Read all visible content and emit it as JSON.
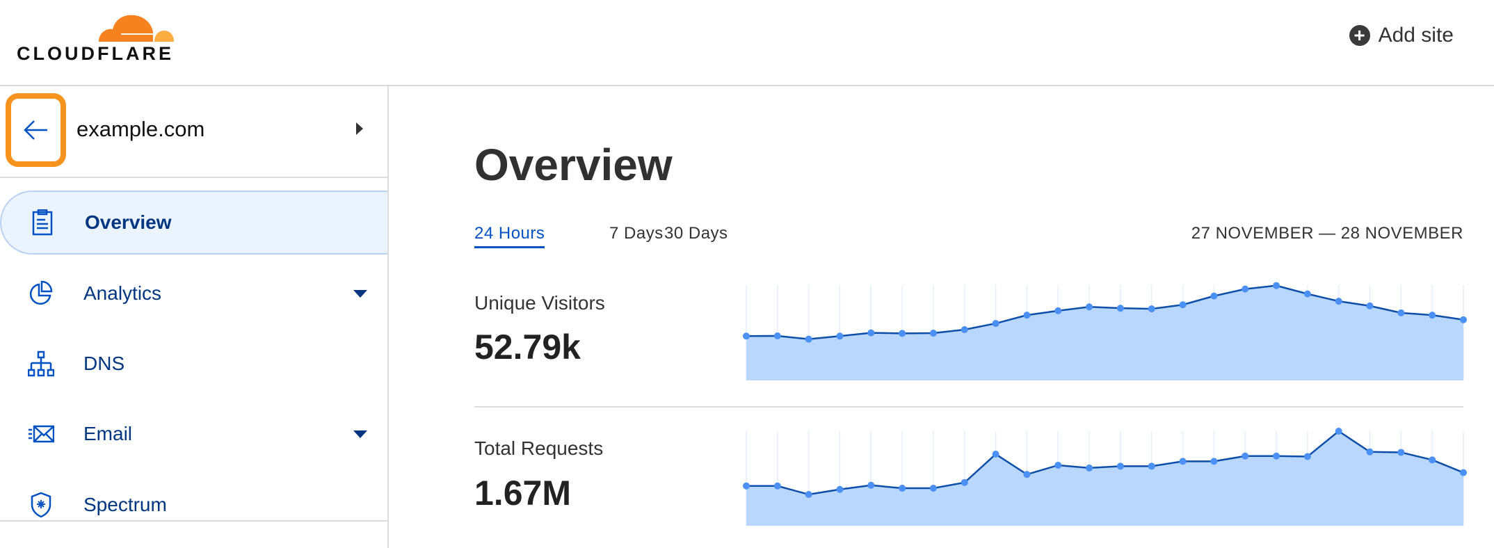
{
  "header": {
    "logo_text": "CLOUDFLARE",
    "add_site_label": "Add site",
    "add_site_icon": "plus-circle-icon"
  },
  "sidebar": {
    "site": {
      "name": "example.com",
      "back_icon": "arrow-left-icon",
      "expand_icon": "caret-right-icon"
    },
    "items": [
      {
        "label": "Overview",
        "icon": "clipboard-icon",
        "active": true,
        "has_dropdown": false
      },
      {
        "label": "Analytics",
        "icon": "pie-chart-icon",
        "active": false,
        "has_dropdown": true
      },
      {
        "label": "DNS",
        "icon": "network-icon",
        "active": false,
        "has_dropdown": false
      },
      {
        "label": "Email",
        "icon": "envelope-icon",
        "active": false,
        "has_dropdown": true
      },
      {
        "label": "Spectrum",
        "icon": "shield-icon",
        "active": false,
        "has_dropdown": false
      }
    ]
  },
  "main": {
    "title": "Overview",
    "tabs": [
      {
        "label": "24 Hours",
        "active": true
      },
      {
        "label": "7 Days",
        "active": false
      },
      {
        "label": "30 Days",
        "active": false
      }
    ],
    "date_range": "27 NOVEMBER — 28 NOVEMBER",
    "metrics": [
      {
        "label": "Unique Visitors",
        "value": "52.79k"
      },
      {
        "label": "Total Requests",
        "value": "1.67M"
      }
    ]
  },
  "colors": {
    "brand_orange": "#f6821f",
    "highlight_orange": "#f6921e",
    "accent_blue": "#0051c3",
    "nav_text": "#003681",
    "chart_fill": "#b9d6fc",
    "chart_line": "#0c4ea8",
    "chart_point": "#4a90f5"
  },
  "chart_data": [
    {
      "type": "area",
      "series": [
        {
          "values": [
            46.5,
            46.7,
            43.3,
            46.5,
            49.9,
            49.4,
            49.6,
            53.3,
            59.8,
            68.5,
            73.1,
            77.2,
            75.8,
            75.1,
            79.4,
            88.6,
            95.9,
            99.5,
            90.8,
            83.1,
            78.2,
            70.9,
            68.5,
            63.7
          ]
        }
      ],
      "ylim": [
        0,
        100
      ],
      "grid": "vertical"
    },
    {
      "type": "area",
      "series": [
        {
          "values": [
            42.1,
            42.1,
            33.1,
            38.4,
            42.8,
            39.7,
            39.7,
            45.7,
            75.7,
            54.3,
            64.0,
            61.1,
            63.0,
            63.0,
            68.1,
            68.1,
            73.7,
            73.7,
            73.2,
            100,
            78.1,
            77.6,
            69.6,
            56.2
          ]
        }
      ],
      "ylim": [
        0,
        100
      ],
      "grid": "vertical"
    }
  ]
}
